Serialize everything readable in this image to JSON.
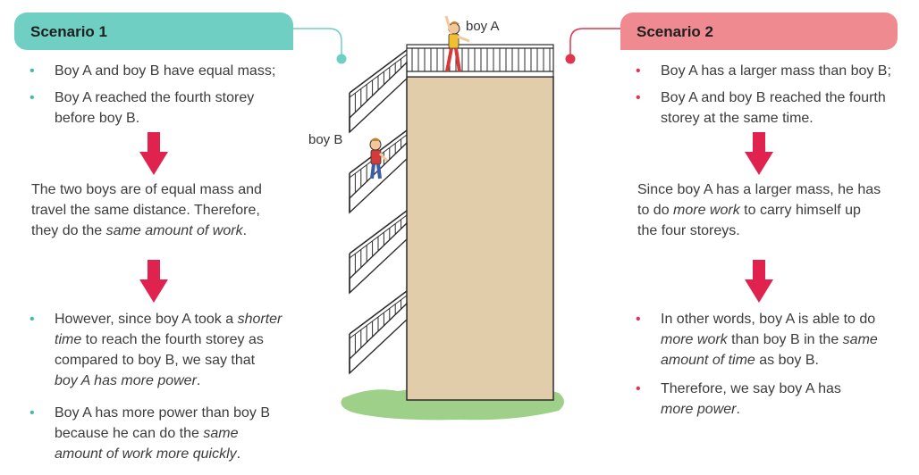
{
  "scenario1": {
    "title": "Scenario 1",
    "accent": "#6fcfc2",
    "bullet_color": "#4bb7aa",
    "bullets_top": [
      [
        "Boy A and boy B have equal mass;"
      ],
      [
        "Boy A reached the fourth storey",
        "before boy B."
      ]
    ],
    "para1": [
      [
        {
          "t": "The two boys are of equal mass and"
        }
      ],
      [
        {
          "t": "travel the same distance. Therefore,"
        }
      ],
      [
        {
          "t": "they do the "
        },
        {
          "t": "same amount of work",
          "i": true
        },
        {
          "t": "."
        }
      ]
    ],
    "bullets_bottom": [
      [
        [
          {
            "t": "However, since boy A took a "
          },
          {
            "t": "shorter",
            "i": true
          }
        ],
        [
          {
            "t": "time",
            "i": true
          },
          {
            "t": " to reach the fourth storey as"
          }
        ],
        [
          {
            "t": "compared to boy B, we say that"
          }
        ],
        [
          {
            "t": "boy A has more power",
            "i": true
          },
          {
            "t": "."
          }
        ]
      ],
      [
        [
          {
            "t": "Boy A has more power than boy B"
          }
        ],
        [
          {
            "t": " because he can do the "
          },
          {
            "t": "same",
            "i": true
          }
        ],
        [
          {
            "t": " amount of work more quickly",
            "i": true
          },
          {
            "t": "."
          }
        ]
      ]
    ]
  },
  "scenario2": {
    "title": "Scenario 2",
    "accent": "#ee8a90",
    "bullet_color": "#e0344f",
    "bullets_top": [
      [
        "Boy A has a larger mass than boy B;"
      ],
      [
        "Boy A and boy B reached the fourth",
        "storey at the same time."
      ]
    ],
    "para1": [
      [
        {
          "t": "Since boy A has a larger mass, he has"
        }
      ],
      [
        {
          "t": "to do "
        },
        {
          "t": "more work",
          "i": true
        },
        {
          "t": " to carry himself up"
        }
      ],
      [
        {
          "t": "the four storeys."
        }
      ]
    ],
    "bullets_bottom": [
      [
        [
          {
            "t": "In other words, boy A is able to do"
          }
        ],
        [
          {
            "t": "more work",
            "i": true
          },
          {
            "t": " than boy B in the "
          },
          {
            "t": "same",
            "i": true
          }
        ],
        [
          {
            "t": "amount of time",
            "i": true
          },
          {
            "t": " as boy B."
          }
        ]
      ],
      [
        [
          {
            "t": "Therefore, we say boy A has"
          }
        ],
        [
          {
            "t": "more power",
            "i": true
          },
          {
            "t": "."
          }
        ]
      ]
    ]
  },
  "figure": {
    "label_a": "boy A",
    "label_b": "boy B"
  },
  "colors": {
    "arrow": "#e0234e",
    "building": "#e2cdaa",
    "grass": "#9fd08a"
  }
}
